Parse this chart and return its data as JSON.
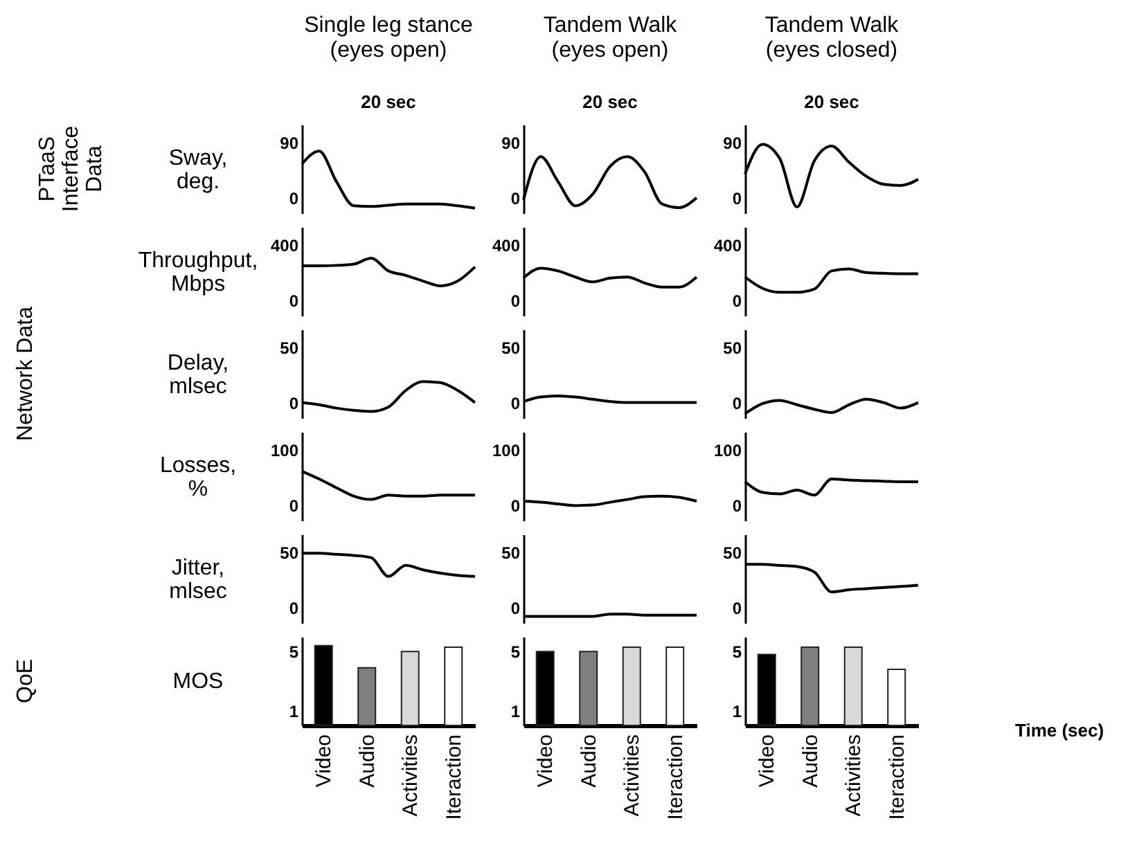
{
  "chart_data": [
    {
      "type": "line",
      "title": "Single leg stance\n(eyes open)",
      "xlabel": "20 sec",
      "ylabel": "Sway,\ndeg.",
      "annotations": [
        "PTaaS\nInterface\nData"
      ],
      "categories": [
        null,
        null,
        null,
        null,
        null,
        null,
        null,
        null,
        null,
        null,
        null
      ],
      "values": [
        55,
        76,
        26,
        -13,
        -14,
        -12,
        -10,
        -10,
        -10,
        -13,
        -17
      ],
      "color": "#000000",
      "ylim": [
        -25,
        119
      ],
      "yticks": [
        0,
        90
      ],
      "tick_labels": "y",
      "grid": false
    },
    {
      "type": "line",
      "title": "Tandem Walk\n(eyes open)",
      "xlabel": "20 sec",
      "categories": [
        null,
        null,
        null,
        null,
        null,
        null,
        null,
        null,
        null,
        null,
        null
      ],
      "values": [
        -3,
        67,
        26,
        -13,
        6,
        51,
        67,
        42,
        -10,
        -16,
        0
      ],
      "color": "#000000",
      "ylim": [
        -25,
        119
      ],
      "yticks": [
        0,
        90
      ],
      "tick_labels": "y",
      "grid": false
    },
    {
      "type": "line",
      "title": "Tandem Walk\n(eyes closed)",
      "xlabel": "20 sec",
      "categories": [
        null,
        null,
        null,
        null,
        null,
        null,
        null,
        null,
        null,
        null,
        null
      ],
      "values": [
        39,
        87,
        64,
        -15,
        60,
        84,
        58,
        35,
        22,
        20,
        30
      ],
      "color": "#000000",
      "ylim": [
        -25,
        119
      ],
      "yticks": [
        0,
        90
      ],
      "tick_labels": "y",
      "grid": false
    },
    {
      "type": "line",
      "ylabel": "Throughput,\nMbps",
      "categories": [
        null,
        null,
        null,
        null,
        null,
        null,
        null,
        null,
        null,
        null,
        null
      ],
      "values": [
        249,
        249,
        252,
        261,
        304,
        212,
        180,
        139,
        104,
        139,
        241
      ],
      "color": "#000000",
      "ylim": [
        -110,
        528
      ],
      "yticks": [
        0,
        400
      ],
      "tick_labels": "y",
      "grid": false
    },
    {
      "type": "line",
      "categories": [
        null,
        null,
        null,
        null,
        null,
        null,
        null,
        null,
        null,
        null,
        null
      ],
      "values": [
        162,
        232,
        212,
        168,
        133,
        160,
        168,
        125,
        96,
        96,
        168
      ],
      "color": "#000000",
      "ylim": [
        -110,
        528
      ],
      "yticks": [
        0,
        400
      ],
      "tick_labels": "y",
      "grid": false
    },
    {
      "type": "line",
      "categories": [
        null,
        null,
        null,
        null,
        null,
        null,
        null,
        null,
        null,
        null,
        null
      ],
      "values": [
        168,
        87,
        58,
        58,
        81,
        212,
        226,
        200,
        195,
        192,
        192
      ],
      "color": "#000000",
      "ylim": [
        -110,
        528
      ],
      "yticks": [
        0,
        400
      ],
      "tick_labels": "y",
      "grid": false
    },
    {
      "type": "line",
      "ylabel": "Delay,\nmlsec",
      "annotations": [
        "Network Data"
      ],
      "categories": [
        null,
        null,
        null,
        null,
        null,
        null,
        null,
        null,
        null,
        null,
        null
      ],
      "values": [
        0,
        -2,
        -5,
        -7,
        -8,
        -4,
        11,
        19,
        18,
        11,
        0
      ],
      "color": "#000000",
      "ylim": [
        -14,
        66
      ],
      "yticks": [
        0,
        50
      ],
      "tick_labels": "y",
      "grid": false
    },
    {
      "type": "line",
      "categories": [
        null,
        null,
        null,
        null,
        null,
        null,
        null,
        null,
        null,
        null,
        null
      ],
      "values": [
        1,
        5,
        6,
        5,
        3,
        1,
        0,
        0,
        0,
        0,
        0
      ],
      "color": "#000000",
      "ylim": [
        -14,
        66
      ],
      "yticks": [
        0,
        50
      ],
      "tick_labels": "y",
      "grid": false
    },
    {
      "type": "line",
      "categories": [
        null,
        null,
        null,
        null,
        null,
        null,
        null,
        null,
        null,
        null,
        null
      ],
      "values": [
        -10,
        -1,
        2,
        -2,
        -6,
        -9,
        -2,
        3,
        0,
        -5,
        0
      ],
      "color": "#000000",
      "ylim": [
        -14,
        66
      ],
      "yticks": [
        0,
        50
      ],
      "tick_labels": "y",
      "grid": false
    },
    {
      "type": "line",
      "ylabel": "Losses,\n%",
      "categories": [
        null,
        null,
        null,
        null,
        null,
        null,
        null,
        null,
        null,
        null,
        null
      ],
      "values": [
        61,
        47,
        31,
        16,
        10,
        18,
        16,
        16,
        18,
        18,
        18
      ],
      "color": "#000000",
      "ylim": [
        -28,
        132
      ],
      "yticks": [
        0,
        100
      ],
      "tick_labels": "y",
      "grid": false
    },
    {
      "type": "line",
      "categories": [
        null,
        null,
        null,
        null,
        null,
        null,
        null,
        null,
        null,
        null,
        null
      ],
      "values": [
        7,
        5,
        2,
        -1,
        0,
        5,
        10,
        15,
        16,
        14,
        7
      ],
      "color": "#000000",
      "ylim": [
        -28,
        132
      ],
      "yticks": [
        0,
        100
      ],
      "tick_labels": "y",
      "grid": false
    },
    {
      "type": "line",
      "categories": [
        null,
        null,
        null,
        null,
        null,
        null,
        null,
        null,
        null,
        null,
        null
      ],
      "values": [
        42,
        23,
        20,
        27,
        18,
        47,
        45,
        44,
        43,
        42,
        42
      ],
      "color": "#000000",
      "ylim": [
        -28,
        132
      ],
      "yticks": [
        0,
        100
      ],
      "tick_labels": "y",
      "grid": false
    },
    {
      "type": "line",
      "ylabel": "Jitter,\nmlsec",
      "categories": [
        null,
        null,
        null,
        null,
        null,
        null,
        null,
        null,
        null,
        null,
        null
      ],
      "values": [
        49,
        49,
        48,
        47,
        45,
        28,
        38,
        34,
        31,
        29,
        28
      ],
      "color": "#000000",
      "ylim": [
        -14,
        66
      ],
      "yticks": [
        0,
        50
      ],
      "tick_labels": "y",
      "grid": false
    },
    {
      "type": "line",
      "categories": [
        null,
        null,
        null,
        null,
        null,
        null,
        null,
        null,
        null,
        null,
        null
      ],
      "values": [
        -8,
        -8,
        -8,
        -8,
        -8,
        -6,
        -6,
        -7,
        -7,
        -7,
        -7
      ],
      "color": "#000000",
      "ylim": [
        -14,
        66
      ],
      "yticks": [
        0,
        50
      ],
      "tick_labels": "y",
      "grid": false
    },
    {
      "type": "line",
      "categories": [
        null,
        null,
        null,
        null,
        null,
        null,
        null,
        null,
        null,
        null,
        null
      ],
      "values": [
        39,
        39,
        38,
        37,
        32,
        14,
        16,
        17,
        18,
        19,
        20
      ],
      "color": "#000000",
      "ylim": [
        -14,
        66
      ],
      "yticks": [
        0,
        50
      ],
      "tick_labels": "y",
      "grid": false
    },
    {
      "type": "bar",
      "ylabel": "MOS",
      "annotations": [
        "QoE"
      ],
      "categories": [
        "Video",
        "Audio",
        "Activities",
        "Iteraction"
      ],
      "values": [
        5.4,
        3.9,
        5.0,
        5.3
      ],
      "colors": [
        "#000000",
        "#7f7f7f",
        "#d9d9d9",
        "#ffffff"
      ],
      "ylim": [
        0,
        6
      ],
      "yticks": [
        1,
        5
      ],
      "grid": false
    },
    {
      "type": "bar",
      "categories": [
        "Video",
        "Audio",
        "Activities",
        "Iteraction"
      ],
      "values": [
        5.0,
        5.0,
        5.3,
        5.3
      ],
      "colors": [
        "#000000",
        "#7f7f7f",
        "#d9d9d9",
        "#ffffff"
      ],
      "ylim": [
        0,
        6
      ],
      "yticks": [
        1,
        5
      ],
      "grid": false
    },
    {
      "type": "bar",
      "xlabel": "Time (sec)",
      "categories": [
        "Video",
        "Audio",
        "Activities",
        "Iteraction"
      ],
      "values": [
        4.8,
        5.3,
        5.3,
        3.8
      ],
      "colors": [
        "#000000",
        "#7f7f7f",
        "#d9d9d9",
        "#ffffff"
      ],
      "ylim": [
        0,
        6
      ],
      "yticks": [
        1,
        5
      ],
      "grid": false
    }
  ]
}
